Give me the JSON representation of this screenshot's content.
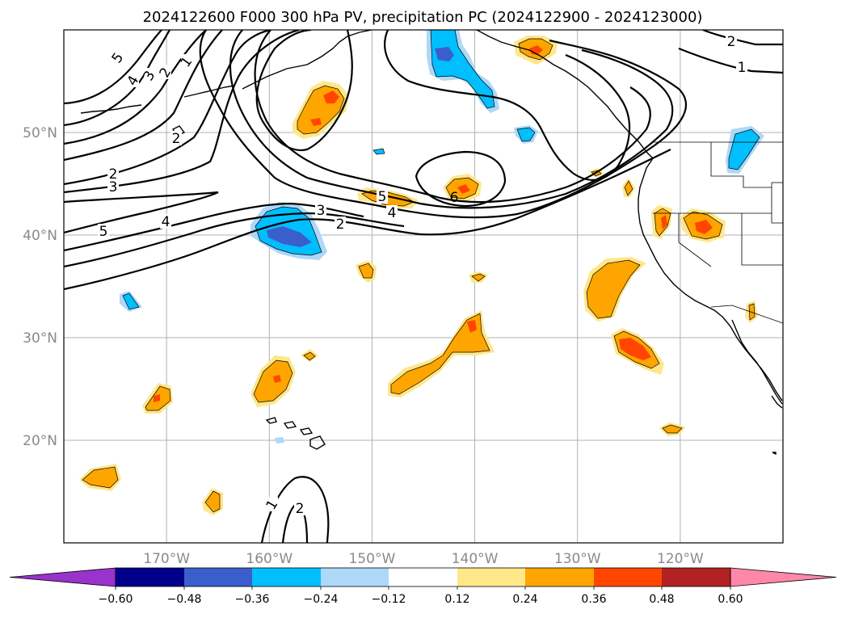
{
  "title": "2024122600 F000 300 hPa PV, precipitation PC (2024122900 - 2024123000)",
  "map": {
    "lon_range": [
      -180,
      -110
    ],
    "lat_range": [
      10,
      60
    ],
    "lon_ticks": [
      {
        "lon": -170,
        "label": "170°W"
      },
      {
        "lon": -160,
        "label": "160°W"
      },
      {
        "lon": -150,
        "label": "150°W"
      },
      {
        "lon": -140,
        "label": "140°W"
      },
      {
        "lon": -130,
        "label": "130°W"
      },
      {
        "lon": -120,
        "label": "120°W"
      }
    ],
    "lat_ticks": [
      {
        "lat": 20,
        "label": "20°N"
      },
      {
        "lat": 30,
        "label": "30°N"
      },
      {
        "lat": 40,
        "label": "40°N"
      },
      {
        "lat": 50,
        "label": "50°N"
      }
    ],
    "gridlines": true
  },
  "colorbar": {
    "levels": [
      "−0.60",
      "−0.48",
      "−0.36",
      "−0.24",
      "−0.12",
      "0.12",
      "0.24",
      "0.36",
      "0.48",
      "0.60"
    ],
    "colors": [
      "#9933cc",
      "#00008b",
      "#3a5fcd",
      "#00bfff",
      "#add8f8",
      "#ffffff",
      "#ffe78a",
      "#ffa500",
      "#ff4500",
      "#b22222",
      "#ff88aa"
    ],
    "extend": "both"
  },
  "pv_contour_labels": [
    "1",
    "2",
    "3",
    "4",
    "5",
    "6"
  ],
  "precip_colors": {
    "neg_light": "#add8f8",
    "neg_mid": "#00bfff",
    "neg_dark": "#3a5fcd",
    "pos_light": "#ffe78a",
    "pos_mid": "#ffa500",
    "pos_dark": "#ff4500"
  }
}
